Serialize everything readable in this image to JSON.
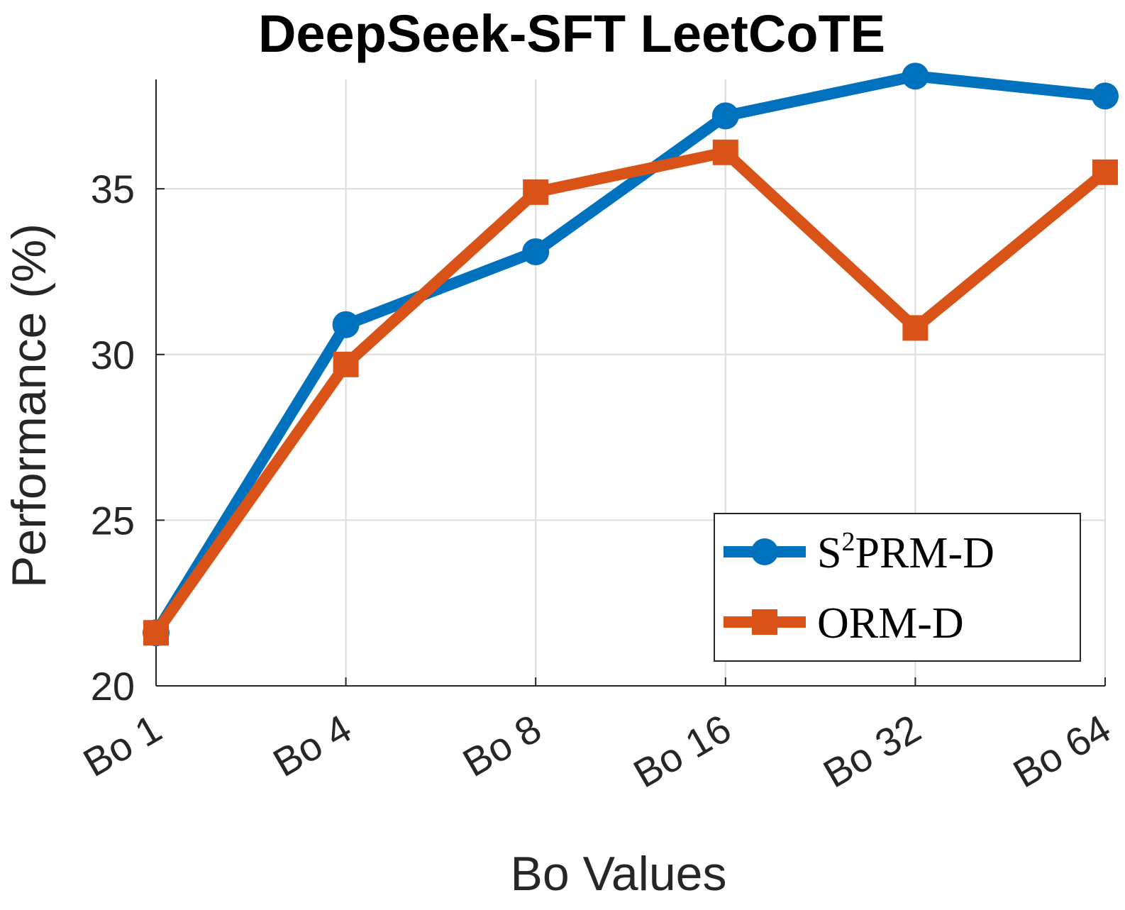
{
  "chart_data": {
    "type": "line",
    "title": "DeepSeek-SFT LeetCoTE",
    "xlabel": "Bo Values",
    "ylabel": "Performance (%)",
    "categories": [
      "Bo 1",
      "Bo 4",
      "Bo 8",
      "Bo 16",
      "Bo 32",
      "Bo 64"
    ],
    "ylim": [
      20,
      38.3
    ],
    "yticks": [
      20,
      25,
      30,
      35
    ],
    "grid": true,
    "legend_position": "bottom-right",
    "series": [
      {
        "name_prefix": "S",
        "name_sup": "2",
        "name_suffix": "PRM-D",
        "color": "#0072BD",
        "marker": "circle",
        "values": [
          21.6,
          30.9,
          33.1,
          37.2,
          38.4,
          37.8
        ]
      },
      {
        "name": "ORM-D",
        "color": "#D95319",
        "marker": "square",
        "values": [
          21.6,
          29.7,
          34.9,
          36.1,
          30.8,
          35.5
        ]
      }
    ]
  }
}
